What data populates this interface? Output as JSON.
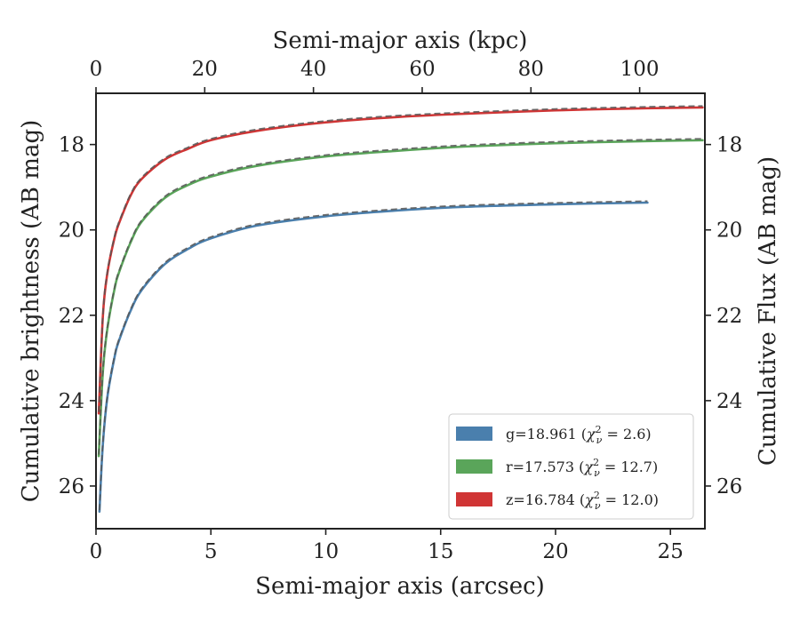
{
  "chart_data": {
    "type": "line",
    "xlabel_bottom": "Semi-major axis (arcsec)",
    "xlabel_top": "Semi-major axis (kpc)",
    "ylabel_left": "Cumulative brightness (AB mag)",
    "ylabel_right": "Cumulative Flux (AB mag)",
    "xlim": [
      0,
      26.5
    ],
    "ylim": [
      27,
      16.8
    ],
    "y_inverted": true,
    "top_xlim": [
      0,
      112
    ],
    "x_ticks": [
      0,
      5,
      10,
      15,
      20,
      25
    ],
    "y_ticks": [
      18,
      20,
      22,
      24,
      26
    ],
    "top_x_ticks": [
      0,
      20,
      40,
      60,
      80,
      100
    ],
    "grid": false,
    "legend_position": "lower-right",
    "legend_entries": [
      {
        "label": "g=18.961 (χ²ν = 2.6)",
        "text": "g=18.961 (",
        "chi_symbol": "χ",
        "sup": "2",
        "sub": "ν",
        "rest": " = 2.6)",
        "color": "#4a7fad"
      },
      {
        "label": "r=17.573 (χ²ν = 12.7)",
        "text": "r=17.573 (",
        "chi_symbol": "χ",
        "sup": "2",
        "sub": "ν",
        "rest": " = 12.7)",
        "color": "#5aa55a"
      },
      {
        "label": "z=16.784 (χ²ν = 12.0)",
        "text": "z=16.784 (",
        "chi_symbol": "χ",
        "sup": "2",
        "sub": "ν",
        "rest": " = 12.0)",
        "color": "#d03535"
      }
    ],
    "series": [
      {
        "name": "g",
        "color": "#4a7fad",
        "x": [
          0.15,
          0.3,
          0.5,
          0.8,
          1.0,
          1.5,
          2.0,
          3.0,
          4.0,
          5.0,
          7.0,
          10.0,
          13.0,
          16.0,
          20.0,
          24.0
        ],
        "y": [
          26.6,
          25.0,
          23.9,
          23.0,
          22.6,
          21.9,
          21.4,
          20.8,
          20.45,
          20.2,
          19.9,
          19.68,
          19.55,
          19.46,
          19.4,
          19.36
        ]
      },
      {
        "name": "r",
        "color": "#5aa55a",
        "x": [
          0.12,
          0.3,
          0.5,
          0.8,
          1.0,
          1.5,
          2.0,
          3.0,
          4.0,
          5.0,
          7.0,
          10.0,
          13.0,
          16.0,
          20.0,
          24.0,
          26.4
        ],
        "y": [
          25.3,
          23.3,
          22.3,
          21.4,
          21.0,
          20.3,
          19.8,
          19.25,
          18.95,
          18.75,
          18.5,
          18.28,
          18.15,
          18.05,
          17.97,
          17.92,
          17.9
        ]
      },
      {
        "name": "z",
        "color": "#d03535",
        "x": [
          0.12,
          0.3,
          0.5,
          0.8,
          1.0,
          1.5,
          2.0,
          3.0,
          4.0,
          5.0,
          7.0,
          10.0,
          13.0,
          16.0,
          20.0,
          24.0,
          26.4
        ],
        "y": [
          24.3,
          22.0,
          21.0,
          20.2,
          19.85,
          19.2,
          18.8,
          18.35,
          18.1,
          17.9,
          17.68,
          17.48,
          17.36,
          17.28,
          17.2,
          17.15,
          17.13
        ]
      }
    ]
  }
}
